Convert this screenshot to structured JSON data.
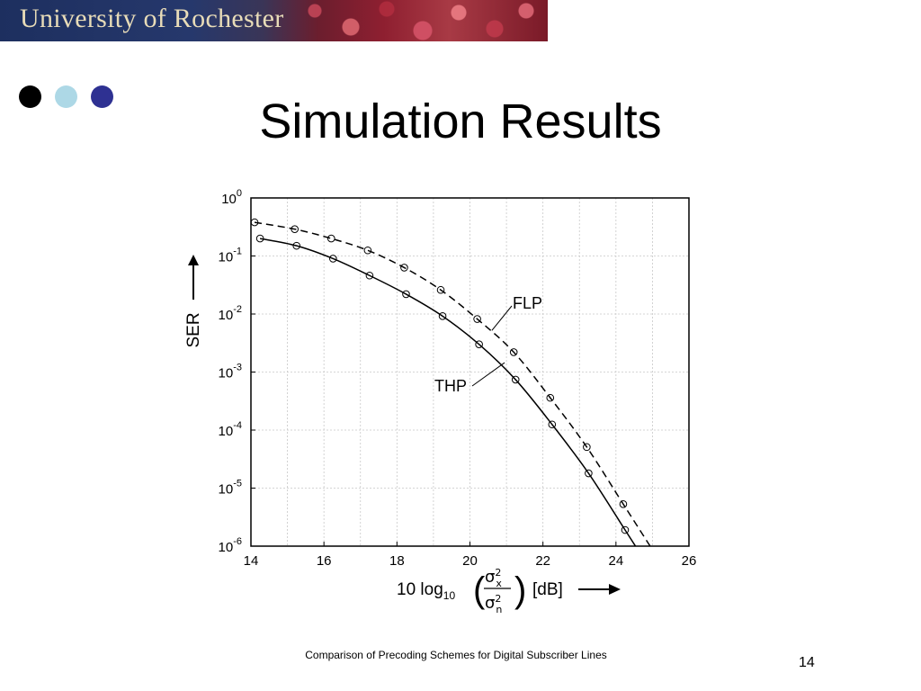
{
  "banner": {
    "title": "University of Rochester",
    "colors": {
      "left": "#1d2f5f",
      "leaves": "#a83a45",
      "text": "#e8dcb8"
    }
  },
  "bullets": {
    "colors": [
      "#000000",
      "#add8e6",
      "#2e3192"
    ]
  },
  "slide": {
    "title": "Simulation Results",
    "footer": "Comparison of Precoding Schemes for Digital Subscriber Lines",
    "page_number": "14"
  },
  "chart_data": {
    "type": "line",
    "title": "",
    "ylabel": "SER",
    "xlabel_parts": {
      "prefix": "10 log",
      "sub": "10",
      "num": "σ",
      "num_sup": "2",
      "num_sub": "x",
      "den": "σ",
      "den_sup": "2",
      "den_sub": "n",
      "unit": "[dB]"
    },
    "xlim": [
      14,
      26
    ],
    "ylim_log10": [
      -6,
      0
    ],
    "y_scale": "log",
    "grid": true,
    "x_ticks": [
      "14",
      "16",
      "18",
      "20",
      "22",
      "24",
      "26"
    ],
    "y_ticks": [
      {
        "base": "10",
        "exp": "0"
      },
      {
        "base": "10",
        "exp": "-1"
      },
      {
        "base": "10",
        "exp": "-2"
      },
      {
        "base": "10",
        "exp": "-3"
      },
      {
        "base": "10",
        "exp": "-4"
      },
      {
        "base": "10",
        "exp": "-5"
      },
      {
        "base": "10",
        "exp": "-6"
      }
    ],
    "series": [
      {
        "name": "FLP",
        "style": "dashed",
        "x": [
          14.1,
          15.2,
          16.2,
          17.2,
          18.2,
          19.2,
          20.2,
          21.2,
          22.2,
          23.2,
          24.2
        ],
        "y": [
          0.38,
          0.29,
          0.2,
          0.125,
          0.063,
          0.026,
          0.0082,
          0.0022,
          0.00036,
          5.1e-05,
          5.3e-06
        ],
        "x_end": 24.95
      },
      {
        "name": "THP",
        "style": "solid",
        "x": [
          14.25,
          15.25,
          16.25,
          17.25,
          18.25,
          19.25,
          20.25,
          21.25,
          22.25,
          23.25,
          24.25
        ],
        "y": [
          0.2,
          0.15,
          0.09,
          0.046,
          0.022,
          0.0092,
          0.003,
          0.00074,
          0.000125,
          1.8e-05,
          1.9e-06
        ],
        "x_end": 24.7
      }
    ]
  }
}
